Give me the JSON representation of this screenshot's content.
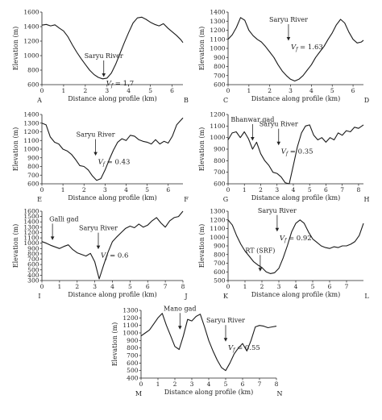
{
  "figure": {
    "y_axis_label": "Elevation (m)",
    "x_axis_label": "Distance along profile (km)"
  },
  "chart_data": [
    {
      "type": "line",
      "corner_labels": [
        "A",
        "B"
      ],
      "xlabel": "Distance along profile (km)",
      "ylabel": "Elevation (m)",
      "xlim": [
        0,
        6.5
      ],
      "ylim": [
        600,
        1600
      ],
      "xticks": [
        "0",
        "1",
        "2",
        "3",
        "4",
        "5",
        "6"
      ],
      "yticks": [
        "600",
        "800",
        "1000",
        "1200",
        "1400",
        "1600"
      ],
      "annotations": [
        {
          "text": "Saryu River",
          "x": 2.85,
          "arrow_to_y": 700
        }
      ],
      "vf": {
        "label": "V",
        "subscript": "f",
        "value": "= 1.7"
      },
      "series": [
        {
          "x": [
            0,
            0.2,
            0.4,
            0.6,
            0.8,
            1.0,
            1.2,
            1.4,
            1.6,
            1.8,
            2.0,
            2.2,
            2.4,
            2.6,
            2.8,
            3.0,
            3.2,
            3.4,
            3.6,
            3.8,
            4.0,
            4.2,
            4.4,
            4.6,
            4.8,
            5.0,
            5.2,
            5.4,
            5.6,
            5.8,
            6.0,
            6.2,
            6.4,
            6.5
          ],
          "values": [
            1420,
            1430,
            1410,
            1425,
            1380,
            1340,
            1260,
            1150,
            1050,
            960,
            880,
            800,
            740,
            700,
            680,
            690,
            760,
            880,
            1030,
            1180,
            1320,
            1450,
            1520,
            1530,
            1500,
            1460,
            1430,
            1410,
            1440,
            1380,
            1330,
            1280,
            1220,
            1180
          ]
        }
      ]
    },
    {
      "type": "line",
      "corner_labels": [
        "C",
        "D"
      ],
      "xlabel": "Distance along profile (km)",
      "ylabel": "Elevation (m)",
      "xlim": [
        0,
        6.5
      ],
      "ylim": [
        600,
        1400
      ],
      "xticks": [
        "0",
        "1",
        "2",
        "3",
        "4",
        "5",
        "6"
      ],
      "yticks": [
        "600",
        "700",
        "800",
        "900",
        "1000",
        "1100",
        "1200",
        "1300",
        "1400"
      ],
      "annotations": [
        {
          "text": "Saryu River",
          "x": 2.9,
          "arrow_to_y": 1080
        }
      ],
      "vf": {
        "label": "V",
        "subscript": "f",
        "value": "= 1.63"
      },
      "series": [
        {
          "x": [
            0,
            0.2,
            0.4,
            0.6,
            0.8,
            1.0,
            1.2,
            1.4,
            1.6,
            1.8,
            2.0,
            2.2,
            2.4,
            2.6,
            2.8,
            3.0,
            3.2,
            3.4,
            3.6,
            3.8,
            4.0,
            4.2,
            4.4,
            4.6,
            4.8,
            5.0,
            5.2,
            5.4,
            5.6,
            5.8,
            6.0,
            6.2,
            6.4,
            6.5
          ],
          "values": [
            1100,
            1150,
            1230,
            1340,
            1310,
            1200,
            1140,
            1100,
            1070,
            1020,
            960,
            900,
            820,
            750,
            700,
            660,
            640,
            660,
            700,
            760,
            820,
            900,
            960,
            1020,
            1100,
            1170,
            1260,
            1320,
            1280,
            1180,
            1100,
            1060,
            1070,
            1090
          ]
        }
      ]
    },
    {
      "type": "line",
      "corner_labels": [
        "E",
        "F"
      ],
      "xlabel": "Distance along profile (km)",
      "ylabel": "Elevation (m)",
      "xlim": [
        0,
        6.7
      ],
      "ylim": [
        600,
        1400
      ],
      "xticks": [
        "0",
        "1",
        "2",
        "3",
        "4",
        "5",
        "6"
      ],
      "yticks": [
        "600",
        "700",
        "800",
        "900",
        "1000",
        "1100",
        "1200",
        "1300",
        "1400"
      ],
      "annotations": [
        {
          "text": "Saryu River",
          "x": 2.55,
          "arrow_to_y": 920
        }
      ],
      "vf": {
        "label": "V",
        "subscript": "f",
        "value": "= 0.43"
      },
      "series": [
        {
          "x": [
            0,
            0.2,
            0.4,
            0.6,
            0.8,
            1.0,
            1.2,
            1.4,
            1.6,
            1.8,
            2.0,
            2.2,
            2.4,
            2.6,
            2.8,
            3.0,
            3.2,
            3.4,
            3.6,
            3.8,
            4.0,
            4.2,
            4.4,
            4.6,
            4.8,
            5.0,
            5.2,
            5.4,
            5.6,
            5.8,
            6.0,
            6.2,
            6.4,
            6.7
          ],
          "values": [
            1300,
            1280,
            1140,
            1080,
            1060,
            1000,
            980,
            940,
            880,
            810,
            800,
            760,
            690,
            640,
            660,
            760,
            880,
            990,
            1080,
            1120,
            1100,
            1160,
            1150,
            1110,
            1090,
            1080,
            1060,
            1110,
            1060,
            1090,
            1070,
            1150,
            1280,
            1360
          ]
        }
      ]
    },
    {
      "type": "line",
      "corner_labels": [
        "G",
        "H"
      ],
      "xlabel": "Distance along profile (km)",
      "ylabel": "Elevation (m)",
      "xlim": [
        0,
        8.3
      ],
      "ylim": [
        600,
        1200
      ],
      "xticks": [
        "0",
        "1",
        "2",
        "3",
        "4",
        "5",
        "6",
        "7",
        "8"
      ],
      "yticks": [
        "600",
        "700",
        "800",
        "900",
        "1000",
        "1100",
        "1200"
      ],
      "annotations": [
        {
          "text": "Bhanwar gad",
          "x": 1.5,
          "arrow_to_y": 970
        },
        {
          "text": "Saryu River",
          "x": 3.1,
          "arrow_to_y": 930
        }
      ],
      "vf": {
        "label": "V",
        "subscript": "f",
        "value": "= 0.35"
      },
      "series": [
        {
          "x": [
            0,
            0.25,
            0.5,
            0.75,
            1.0,
            1.25,
            1.5,
            1.75,
            2.0,
            2.25,
            2.5,
            2.75,
            3.0,
            3.25,
            3.5,
            3.75,
            4.0,
            4.25,
            4.5,
            4.75,
            5.0,
            5.25,
            5.5,
            5.75,
            6.0,
            6.25,
            6.5,
            6.75,
            7.0,
            7.25,
            7.5,
            7.75,
            8.0,
            8.3
          ],
          "values": [
            980,
            1040,
            1050,
            1000,
            1050,
            990,
            900,
            960,
            860,
            800,
            760,
            700,
            690,
            660,
            610,
            600,
            760,
            920,
            1040,
            1100,
            1110,
            1020,
            980,
            1000,
            960,
            1000,
            980,
            1040,
            1020,
            1060,
            1050,
            1090,
            1080,
            1110
          ]
        }
      ]
    },
    {
      "type": "line",
      "corner_labels": [
        "I",
        "J"
      ],
      "xlabel": "Distance along profile (km)",
      "ylabel": "Elevation (m)",
      "xlim": [
        0,
        8
      ],
      "ylim": [
        300,
        1600
      ],
      "xticks": [
        "0",
        "1",
        "2",
        "3",
        "4",
        "5",
        "6",
        "7",
        "8"
      ],
      "yticks": [
        "300",
        "400",
        "500",
        "600",
        "700",
        "800",
        "900",
        "1000",
        "1100",
        "1200",
        "1300",
        "1400",
        "1500",
        "1600"
      ],
      "annotations": [
        {
          "text": "Galli gad",
          "x": 0.6,
          "arrow_to_y": 1050
        },
        {
          "text": "Saryu River",
          "x": 3.2,
          "arrow_to_y": 880
        }
      ],
      "vf": {
        "label": "V",
        "subscript": "f",
        "value": "= 0.6"
      },
      "series": [
        {
          "x": [
            0,
            0.25,
            0.5,
            0.75,
            1.0,
            1.25,
            1.5,
            1.75,
            2.0,
            2.25,
            2.5,
            2.75,
            3.0,
            3.25,
            3.5,
            3.75,
            4.0,
            4.25,
            4.5,
            4.75,
            5.0,
            5.25,
            5.5,
            5.75,
            6.0,
            6.25,
            6.5,
            6.75,
            7.0,
            7.25,
            7.5,
            7.75,
            8.0
          ],
          "values": [
            1030,
            1000,
            960,
            930,
            900,
            940,
            970,
            880,
            820,
            790,
            760,
            810,
            650,
            330,
            590,
            830,
            1030,
            1120,
            1200,
            1280,
            1320,
            1290,
            1360,
            1300,
            1340,
            1420,
            1480,
            1380,
            1300,
            1420,
            1480,
            1500,
            1600
          ]
        }
      ]
    },
    {
      "type": "line",
      "corner_labels": [
        "K",
        "L"
      ],
      "xlabel": "Distance along profile (km)",
      "ylabel": "Elevation (m)",
      "xlim": [
        0,
        8
      ],
      "ylim": [
        500,
        1300
      ],
      "xticks": [
        "0",
        "1",
        "2",
        "3",
        "4",
        "5",
        "6",
        "7"
      ],
      "yticks": [
        "500",
        "600",
        "700",
        "800",
        "900",
        "1000",
        "1100",
        "1200",
        "1300"
      ],
      "annotations": [
        {
          "text": "Saryu River",
          "x": 2.9,
          "arrow_to_y": 1060
        },
        {
          "text": "RT (SRF)",
          "x": 1.9,
          "arrow_to_y": 600
        }
      ],
      "vf": {
        "label": "V",
        "subscript": "f",
        "value": "= 0.92"
      },
      "series": [
        {
          "x": [
            0,
            0.25,
            0.5,
            0.75,
            1.0,
            1.25,
            1.5,
            1.75,
            2.0,
            2.25,
            2.5,
            2.75,
            3.0,
            3.25,
            3.5,
            3.75,
            4.0,
            4.25,
            4.5,
            4.75,
            5.0,
            5.25,
            5.5,
            5.75,
            6.0,
            6.25,
            6.5,
            6.75,
            7.0,
            7.25,
            7.5,
            7.75,
            8.0
          ],
          "values": [
            1200,
            1140,
            1020,
            920,
            840,
            780,
            720,
            680,
            650,
            600,
            580,
            590,
            640,
            760,
            900,
            1060,
            1160,
            1200,
            1160,
            1060,
            980,
            940,
            900,
            880,
            870,
            890,
            880,
            900,
            900,
            920,
            950,
            1020,
            1160
          ]
        }
      ]
    },
    {
      "type": "line",
      "corner_labels": [
        "M",
        "N"
      ],
      "xlabel": "Distance along profile (km)",
      "ylabel": "Elevation (m)",
      "xlim": [
        0,
        8
      ],
      "ylim": [
        400,
        1300
      ],
      "xticks": [
        "0",
        "1",
        "2",
        "3",
        "4",
        "5",
        "6",
        "7",
        "8"
      ],
      "yticks": [
        "400",
        "500",
        "600",
        "700",
        "800",
        "900",
        "1000",
        "1100",
        "1200",
        "1300"
      ],
      "annotations": [
        {
          "text": "Mano gad",
          "x": 2.3,
          "arrow_to_y": 1040
        },
        {
          "text": "Saryu River",
          "x": 5.0,
          "arrow_to_y": 880
        }
      ],
      "vf": {
        "label": "V",
        "subscript": "f",
        "value": "= 0.55"
      },
      "series": [
        {
          "x": [
            0,
            0.25,
            0.5,
            0.75,
            1.0,
            1.25,
            1.5,
            1.75,
            2.0,
            2.25,
            2.5,
            2.75,
            3.0,
            3.25,
            3.5,
            3.75,
            4.0,
            4.25,
            4.5,
            4.75,
            5.0,
            5.25,
            5.5,
            5.75,
            6.0,
            6.25,
            6.5,
            6.75,
            7.0,
            7.25,
            7.5,
            7.75,
            8.0
          ],
          "values": [
            960,
            1000,
            1040,
            1120,
            1200,
            1260,
            1100,
            960,
            820,
            780,
            960,
            1180,
            1160,
            1220,
            1250,
            1080,
            900,
            760,
            640,
            540,
            500,
            600,
            720,
            800,
            860,
            760,
            900,
            1080,
            1100,
            1090,
            1070,
            1080,
            1090
          ]
        }
      ]
    }
  ]
}
